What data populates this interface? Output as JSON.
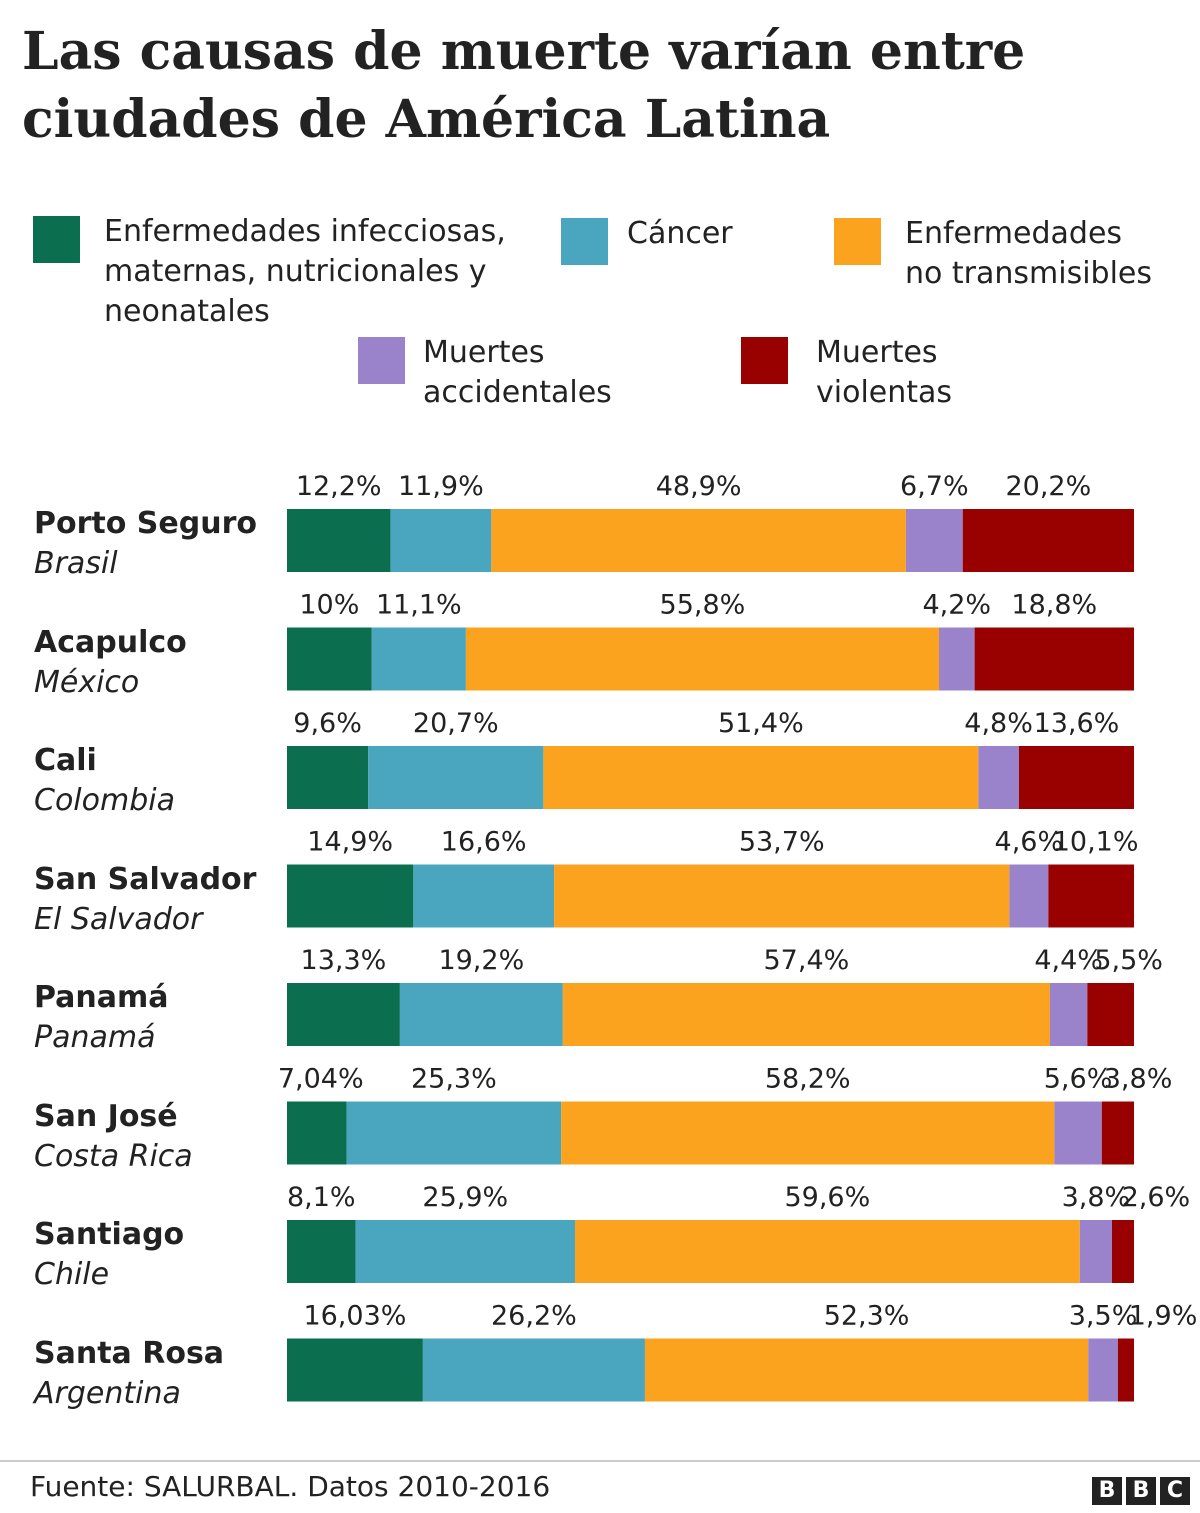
{
  "title_line1": "Las causas de muerte varían entre",
  "title_line2": "ciudades de América Latina",
  "legend": [
    {
      "lines": [
        "Enfermedades infecciosas,",
        "maternas, nutricionales y",
        "neonatales"
      ],
      "color": "#0a6e4f"
    },
    {
      "lines": [
        "Cáncer"
      ],
      "color": "#4aa5be"
    },
    {
      "lines": [
        "Enfermedades",
        "no transmisibles"
      ],
      "color": "#fba31f"
    },
    {
      "lines": [
        "Muertes",
        "accidentales"
      ],
      "color": "#9b83cc"
    },
    {
      "lines": [
        "Muertes",
        "violentas"
      ],
      "color": "#990000"
    }
  ],
  "chart_data": {
    "type": "bar",
    "orientation": "horizontal",
    "stacked": true,
    "categories": [
      {
        "city": "Porto Seguro",
        "country": "Brasil"
      },
      {
        "city": "Acapulco",
        "country": "México"
      },
      {
        "city": "Cali",
        "country": "Colombia"
      },
      {
        "city": "San Salvador",
        "country": "El Salvador"
      },
      {
        "city": "Panamá",
        "country": "Panamá"
      },
      {
        "city": "San José",
        "country": "Costa Rica"
      },
      {
        "city": "Santiago",
        "country": "Chile"
      },
      {
        "city": "Santa Rosa",
        "country": "Argentina"
      }
    ],
    "series": [
      {
        "name": "Enfermedades infecciosas, maternas, nutricionales y neonatales",
        "color": "#0a6e4f",
        "values": [
          12.2,
          10,
          9.6,
          14.9,
          13.3,
          7.04,
          8.1,
          16.03
        ],
        "labels": [
          "12,2%",
          "10%",
          "9,6%",
          "14,9%",
          "13,3%",
          "7,04%",
          "8,1%",
          "16,03%"
        ]
      },
      {
        "name": "Cáncer",
        "color": "#4aa5be",
        "values": [
          11.9,
          11.1,
          20.7,
          16.6,
          19.2,
          25.3,
          25.9,
          26.2
        ],
        "labels": [
          "11,9%",
          "11,1%",
          "20,7%",
          "16,6%",
          "19,2%",
          "25,3%",
          "25,9%",
          "26,2%"
        ]
      },
      {
        "name": "Enfermedades no transmisibles",
        "color": "#fba31f",
        "values": [
          48.9,
          55.8,
          51.4,
          53.7,
          57.4,
          58.2,
          59.6,
          52.3
        ],
        "labels": [
          "48,9%",
          "55,8%",
          "51,4%",
          "53,7%",
          "57,4%",
          "58,2%",
          "59,6%",
          "52,3%"
        ]
      },
      {
        "name": "Muertes accidentales",
        "color": "#9b83cc",
        "values": [
          6.7,
          4.2,
          4.8,
          4.6,
          4.4,
          5.6,
          3.8,
          3.5
        ],
        "labels": [
          "6,7%",
          "4,2%",
          "4,8%",
          "4,6%",
          "4,4%",
          "5,6%",
          "3,8%",
          "3,5%"
        ]
      },
      {
        "name": "Muertes violentas",
        "color": "#990000",
        "values": [
          20.2,
          18.8,
          13.6,
          10.1,
          5.5,
          3.8,
          2.6,
          1.9
        ],
        "labels": [
          "20,2%",
          "18,8%",
          "13,6%",
          "10,1%",
          "5,5%",
          "3,8%",
          "2,6%",
          "1,9%"
        ]
      }
    ]
  },
  "source": "Fuente: SALURBAL. Datos 2010-2016",
  "logo": [
    "B",
    "B",
    "C"
  ]
}
